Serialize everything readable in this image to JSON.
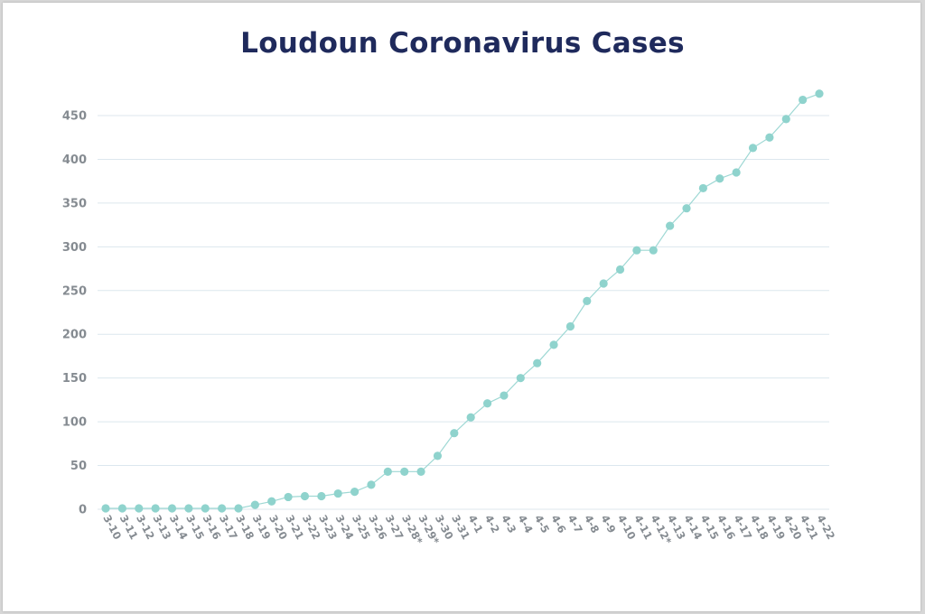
{
  "chart_data": {
    "type": "line",
    "title": "Loudoun Coronavirus Cases",
    "xlabel": "",
    "ylabel": "",
    "categories": [
      "3-10",
      "3-11",
      "3-12",
      "3-13",
      "3-14",
      "3-15",
      "3-16",
      "3-17",
      "3-18",
      "3-19",
      "3-20",
      "3-21",
      "3-22",
      "3-23",
      "3-24",
      "3-25",
      "3-26",
      "3-27",
      "3-28*",
      "3-29*",
      "3-30",
      "3-31",
      "4-1",
      "4-2",
      "4-3",
      "4-4",
      "4-5",
      "4-6",
      "4-7",
      "4-8",
      "4-9",
      "4-10",
      "4-11",
      "4-12*",
      "4-13",
      "4-14",
      "4-15",
      "4-16",
      "4-17",
      "4-18",
      "4-19",
      "4-20",
      "4-21",
      "4-22"
    ],
    "series": [
      {
        "values": [
          1,
          1,
          1,
          1,
          1,
          1,
          1,
          1,
          1,
          5,
          9,
          14,
          15,
          15,
          18,
          20,
          28,
          43,
          43,
          43,
          61,
          87,
          105,
          121,
          130,
          150,
          167,
          188,
          209,
          238,
          258,
          274,
          296,
          296,
          324,
          344,
          367,
          378,
          385,
          413,
          425,
          446,
          468,
          475
        ]
      }
    ],
    "yticks": [
      0,
      50,
      100,
      150,
      200,
      250,
      300,
      350,
      400,
      450
    ],
    "ylim": [
      0,
      450
    ],
    "grid": true,
    "legend": "none",
    "colors": {
      "title": "#1f2a5c",
      "line": "#9ed8d4",
      "marker": "#8fd3cd",
      "grid": "#dce7ee",
      "ticks": "#858b91"
    }
  }
}
